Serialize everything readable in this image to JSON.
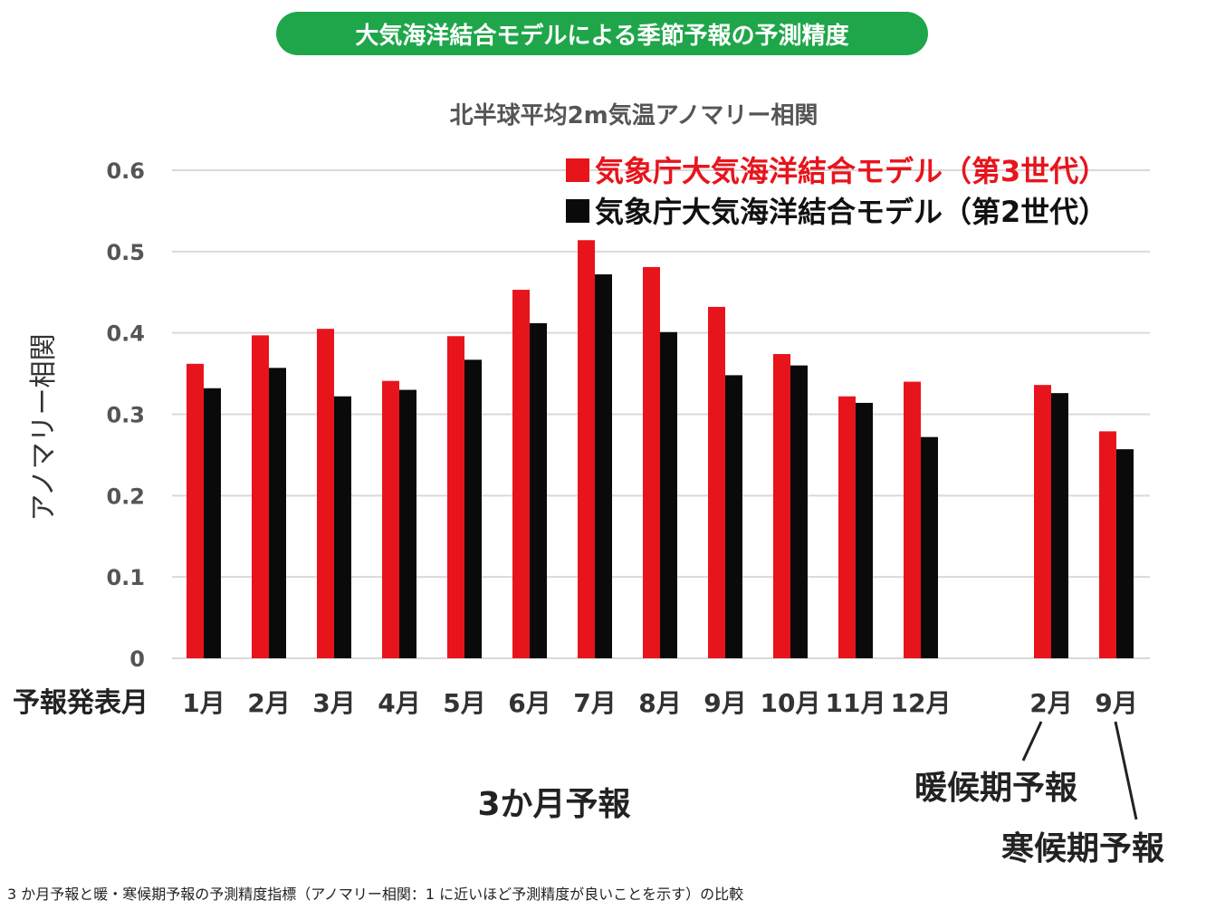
{
  "banner": "大気海洋結合モデルによる季節予報の予測精度",
  "caption": "3 か月予報と暖・寒候期予報の予測精度指標（アノマリー相関：1 に近いほど予測精度が良いことを示す）の比較",
  "chart_data": {
    "type": "bar",
    "title": "北半球平均2m気温アノマリー相関",
    "ylabel": "アノマリー相関",
    "xlabel": "予報発表月",
    "ylim": [
      0,
      0.6
    ],
    "yticks": [
      "0",
      "0.1",
      "0.2",
      "0.3",
      "0.4",
      "0.5",
      "0.6"
    ],
    "grid": true,
    "legend": "top-right",
    "categories": [
      "1月",
      "2月",
      "3月",
      "4月",
      "5月",
      "6月",
      "7月",
      "8月",
      "9月",
      "10月",
      "11月",
      "12月",
      "2月",
      "9月"
    ],
    "series": [
      {
        "name": "気象庁大気海洋結合モデル（第3世代）",
        "color": "#e8141c",
        "values": [
          0.362,
          0.397,
          0.405,
          0.341,
          0.396,
          0.453,
          0.514,
          0.481,
          0.432,
          0.374,
          0.322,
          0.34,
          0.336,
          0.279
        ]
      },
      {
        "name": "気象庁大気海洋結合モデル（第2世代）",
        "color": "#0a0a0a",
        "values": [
          0.332,
          0.357,
          0.322,
          0.33,
          0.367,
          0.412,
          0.472,
          0.401,
          0.348,
          0.36,
          0.314,
          0.272,
          0.326,
          0.257
        ]
      }
    ],
    "group_labels": {
      "three_month": "3か月予報",
      "warm_season": "暖候期予報",
      "cold_season": "寒候期予報"
    }
  }
}
